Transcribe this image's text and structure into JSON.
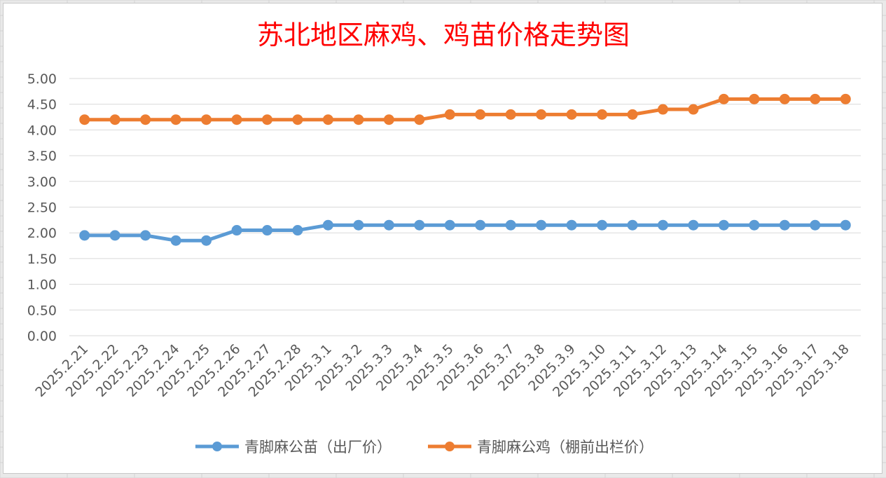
{
  "colors": {
    "title": "#ff0000",
    "series_1": "#5b9bd5",
    "series_2": "#ed7d31",
    "grid": "#d9d9d9",
    "axis_text": "#595959"
  },
  "chart_data": {
    "type": "line",
    "title": "苏北地区麻鸡、鸡苗价格走势图",
    "xlabel": "",
    "ylabel": "",
    "ylim": [
      0,
      5
    ],
    "y_ticks": [
      "0.00",
      "0.50",
      "1.00",
      "1.50",
      "2.00",
      "2.50",
      "3.00",
      "3.50",
      "4.00",
      "4.50",
      "5.00"
    ],
    "grid": true,
    "legend_position": "bottom",
    "x": [
      "2025.2.21",
      "2025.2.22",
      "2025.2.23",
      "2025.2.24",
      "2025.2.25",
      "2025.2.26",
      "2025.2.27",
      "2025.2.28",
      "2025.3.1",
      "2025.3.2",
      "2025.3.3",
      "2025.3.4",
      "2025.3.5",
      "2025.3.6",
      "2025.3.7",
      "2025.3.8",
      "2025.3.9",
      "2025.3.10",
      "2025.3.11",
      "2025.3.12",
      "2025.3.13",
      "2025.3.14",
      "2025.3.15",
      "2025.3.16",
      "2025.3.17",
      "2025.3.18"
    ],
    "series": [
      {
        "name": "青脚麻公苗（出厂价）",
        "values": [
          1.95,
          1.95,
          1.95,
          1.85,
          1.85,
          2.05,
          2.05,
          2.05,
          2.15,
          2.15,
          2.15,
          2.15,
          2.15,
          2.15,
          2.15,
          2.15,
          2.15,
          2.15,
          2.15,
          2.15,
          2.15,
          2.15,
          2.15,
          2.15,
          2.15,
          2.15
        ]
      },
      {
        "name": "青脚麻公鸡（棚前出栏价）",
        "values": [
          4.2,
          4.2,
          4.2,
          4.2,
          4.2,
          4.2,
          4.2,
          4.2,
          4.2,
          4.2,
          4.2,
          4.2,
          4.3,
          4.3,
          4.3,
          4.3,
          4.3,
          4.3,
          4.3,
          4.4,
          4.4,
          4.6,
          4.6,
          4.6,
          4.6,
          4.6
        ]
      }
    ]
  }
}
